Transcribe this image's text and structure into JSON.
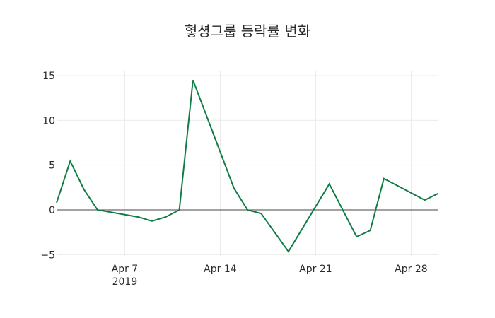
{
  "chart_data": {
    "type": "line",
    "title": "혛셩그룹 등락률 변화",
    "xlabel": "",
    "ylabel": "",
    "ylim": [
      -5.5,
      15.5
    ],
    "xrange": [
      "2019-04-02",
      "2019-04-30"
    ],
    "grid": true,
    "legend": null,
    "x_ticks": [
      {
        "date": "2019-04-07",
        "label": "Apr 7",
        "sublabel": "2019"
      },
      {
        "date": "2019-04-14",
        "label": "Apr 14"
      },
      {
        "date": "2019-04-21",
        "label": "Apr 21"
      },
      {
        "date": "2019-04-28",
        "label": "Apr 28"
      }
    ],
    "y_ticks": [
      -5,
      0,
      5,
      10,
      15
    ],
    "y_tick_labels": [
      "−5",
      "0",
      "5",
      "10",
      "15"
    ],
    "series": [
      {
        "name": "등락률",
        "color": "#0f7d45",
        "x": [
          "2019-04-02",
          "2019-04-03",
          "2019-04-04",
          "2019-04-05",
          "2019-04-08",
          "2019-04-09",
          "2019-04-10",
          "2019-04-11",
          "2019-04-12",
          "2019-04-15",
          "2019-04-16",
          "2019-04-17",
          "2019-04-19",
          "2019-04-22",
          "2019-04-24",
          "2019-04-25",
          "2019-04-26",
          "2019-04-29",
          "2019-04-30"
        ],
        "values": [
          0.8,
          5.45,
          2.3,
          0.0,
          -0.8,
          -1.25,
          -0.8,
          0.0,
          14.5,
          2.45,
          0.0,
          -0.4,
          -4.65,
          2.9,
          -3.0,
          -2.3,
          3.5,
          1.1,
          1.85
        ]
      }
    ]
  },
  "title": "혛셩그룹 등락률 변화"
}
